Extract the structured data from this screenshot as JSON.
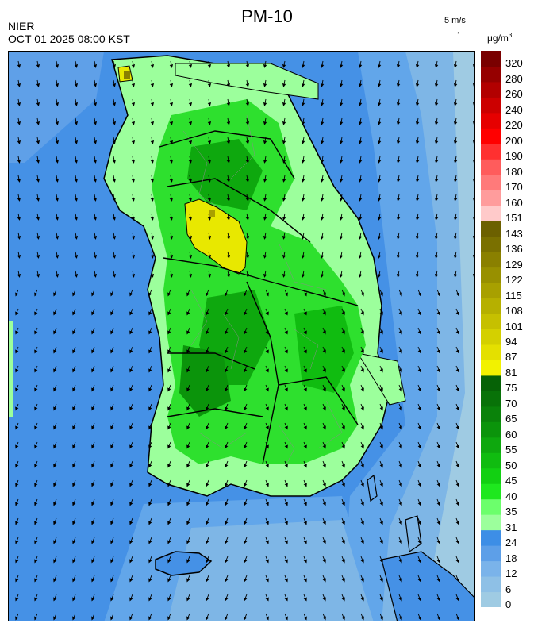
{
  "header": {
    "title": "PM-10",
    "agency": "NIER",
    "timestamp": "OCT 01 2025 08:00 KST",
    "wind_reference": "5 m/s",
    "wind_reference_arrow": "→",
    "unit": "μg/m",
    "unit_superscript": "3"
  },
  "legend": {
    "bins": [
      {
        "label": "0",
        "color": "#9fcbe3"
      },
      {
        "label": "6",
        "color": "#8ec0e6"
      },
      {
        "label": "12",
        "color": "#7ab3ea"
      },
      {
        "label": "18",
        "color": "#5d9fe8"
      },
      {
        "label": "24",
        "color": "#3d8ee6"
      },
      {
        "label": "31",
        "color": "#9cff9c"
      },
      {
        "label": "35",
        "color": "#6cff6c"
      },
      {
        "label": "40",
        "color": "#1ee81e"
      },
      {
        "label": "45",
        "color": "#12d012"
      },
      {
        "label": "50",
        "color": "#10bc10"
      },
      {
        "label": "55",
        "color": "#0ea80e"
      },
      {
        "label": "60",
        "color": "#0b940b"
      },
      {
        "label": "65",
        "color": "#0a820a"
      },
      {
        "label": "70",
        "color": "#087208"
      },
      {
        "label": "75",
        "color": "#066206"
      },
      {
        "label": "81",
        "color": "#f2f200"
      },
      {
        "label": "87",
        "color": "#e4e000"
      },
      {
        "label": "94",
        "color": "#d4d000"
      },
      {
        "label": "101",
        "color": "#c6c000"
      },
      {
        "label": "108",
        "color": "#b6b000"
      },
      {
        "label": "115",
        "color": "#a8a000"
      },
      {
        "label": "122",
        "color": "#989000"
      },
      {
        "label": "129",
        "color": "#8a8000"
      },
      {
        "label": "136",
        "color": "#7a7000"
      },
      {
        "label": "143",
        "color": "#6c6000"
      },
      {
        "label": "151",
        "color": "#ffcaca"
      },
      {
        "label": "160",
        "color": "#ff9c9c"
      },
      {
        "label": "170",
        "color": "#ff7a7a"
      },
      {
        "label": "180",
        "color": "#ff5c5c"
      },
      {
        "label": "190",
        "color": "#ff3030"
      },
      {
        "label": "200",
        "color": "#ff0000"
      },
      {
        "label": "220",
        "color": "#e60000"
      },
      {
        "label": "240",
        "color": "#cc0000"
      },
      {
        "label": "260",
        "color": "#b20000"
      },
      {
        "label": "280",
        "color": "#960000"
      },
      {
        "label": "320",
        "color": "#7a0000"
      }
    ]
  }
}
